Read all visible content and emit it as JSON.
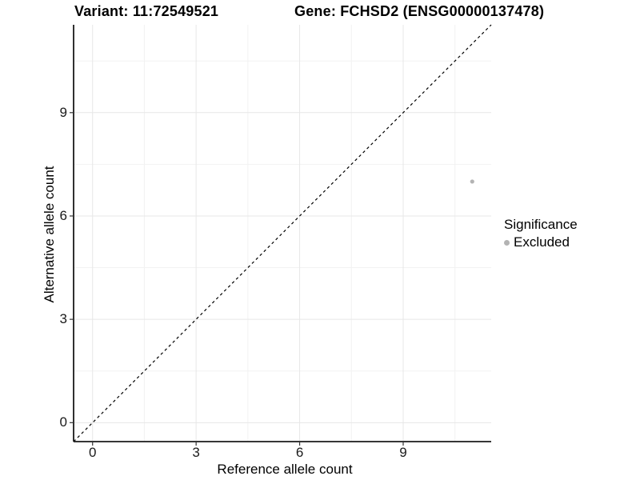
{
  "chart_data": {
    "type": "scatter",
    "title_left": "Variant: 11:72549521",
    "title_right": "Gene: FCHSD2 (ENSG00000137478)",
    "xlabel": "Reference allele count",
    "ylabel": "Alternative allele count",
    "xlim": [
      -0.55,
      11.55
    ],
    "ylim": [
      -0.55,
      11.55
    ],
    "x_ticks": [
      0,
      3,
      6,
      9
    ],
    "y_ticks": [
      0,
      3,
      6,
      9
    ],
    "x_minor": [
      1.5,
      4.5,
      7.5,
      10.5
    ],
    "y_minor": [
      1.5,
      4.5,
      7.5,
      10.5
    ],
    "grid": true,
    "points": [
      {
        "x": 11,
        "y": 7,
        "significance": "Excluded"
      }
    ],
    "reference_line": {
      "slope": 1,
      "intercept": 0,
      "style": "dashed",
      "color": "#000000"
    },
    "legend": {
      "title": "Significance",
      "position": "right",
      "items": [
        {
          "label": "Excluded",
          "color": "#b3b3b3"
        }
      ]
    },
    "colors": {
      "point": "#b3b3b3",
      "axis": "#1a1a1a",
      "tick": "#333333",
      "grid_major": "#e7e7e7",
      "grid_minor": "#f2f2f2",
      "background": "#ffffff"
    }
  }
}
